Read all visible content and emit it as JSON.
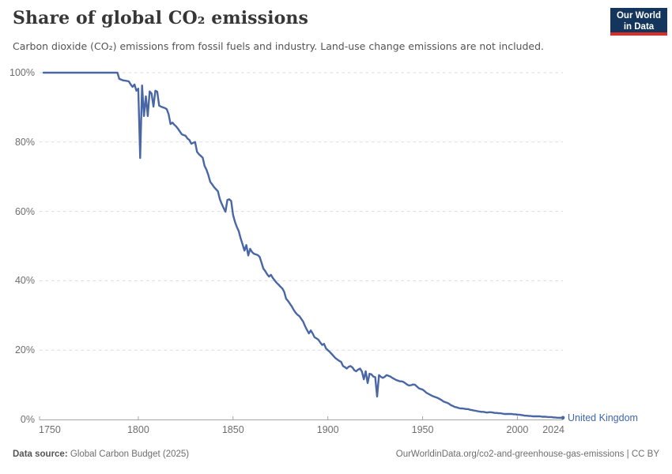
{
  "header": {
    "title": "Share of global CO₂ emissions",
    "subtitle": "Carbon dioxide (CO₂) emissions from fossil fuels and industry. Land-use change emissions are not included.",
    "logo": {
      "line1": "Our World",
      "line2": "in Data"
    }
  },
  "footer": {
    "source_label": "Data source:",
    "source_text": "Global Carbon Budget (2025)",
    "right_text": "OurWorldinData.org/co2-and-greenhouse-gas-emissions | CC BY"
  },
  "colors": {
    "line": "#4867a4",
    "entity_label": "#3f65ae",
    "logo_bg": "#14355c",
    "logo_accent": "#dc2e27",
    "grid": "#dadada",
    "axis": "#a5a5a5",
    "tick_label": "#6e6e6e",
    "title": "#373737",
    "subtitle": "#545454",
    "footer": "#6e6e6e"
  },
  "chart_data": {
    "type": "line",
    "title": "Share of global CO₂ emissions",
    "xlabel": "",
    "ylabel": "",
    "xlim": [
      1750,
      2024
    ],
    "ylim": [
      0,
      100
    ],
    "grid": "horizontal-dashed",
    "legend_position": "end-of-line",
    "x_ticks": [
      {
        "label": "1750",
        "value": 1750
      },
      {
        "label": "1800",
        "value": 1800
      },
      {
        "label": "1850",
        "value": 1850
      },
      {
        "label": "1900",
        "value": 1900
      },
      {
        "label": "1950",
        "value": 1950
      },
      {
        "label": "2000",
        "value": 2000
      },
      {
        "label": "2024",
        "value": 2024
      }
    ],
    "y_ticks": [
      {
        "label": "0%",
        "value": 0
      },
      {
        "label": "20%",
        "value": 20
      },
      {
        "label": "40%",
        "value": 40
      },
      {
        "label": "60%",
        "value": 60
      },
      {
        "label": "80%",
        "value": 80
      },
      {
        "label": "100%",
        "value": 100
      }
    ],
    "series": [
      {
        "name": "United Kingdom",
        "color": "#4867a4",
        "unit": "%",
        "start_year": 1750,
        "end_year": 2024,
        "values": [
          100,
          100,
          100,
          100,
          100,
          100,
          100,
          100,
          100,
          100,
          100,
          100,
          100,
          100,
          100,
          100,
          100,
          100,
          100,
          100,
          100,
          100,
          100,
          100,
          100,
          100,
          100,
          100,
          100,
          100,
          100,
          100,
          100,
          100,
          100,
          100,
          100,
          100,
          100,
          100,
          98.2,
          98.0,
          97.8,
          97.7,
          97.6,
          97.5,
          96.6,
          95.9,
          96.6,
          94.8,
          95.4,
          75.4,
          96.3,
          87.5,
          93.2,
          87.5,
          94.6,
          94.0,
          90.2,
          94.8,
          94.5,
          90.5,
          90.2,
          90.0,
          89.8,
          89.5,
          88.0,
          85.2,
          85.6,
          85.0,
          84.5,
          83.8,
          83.0,
          82.2,
          82.0,
          81.8,
          81.0,
          80.6,
          79.5,
          79.8,
          80.0,
          77.2,
          76.5,
          76.0,
          75.5,
          73.1,
          72.0,
          70.4,
          68.5,
          67.8,
          67.0,
          66.4,
          65.8,
          63.6,
          62.2,
          61.0,
          59.9,
          63.3,
          63.5,
          63.0,
          59.0,
          57.0,
          55.5,
          54.3,
          52.2,
          50.5,
          48.7,
          50.3,
          47.3,
          49.2,
          48.3,
          47.8,
          47.6,
          47.4,
          46.9,
          45.3,
          43.5,
          42.8,
          41.9,
          41.2,
          41.7,
          40.8,
          40.1,
          39.4,
          38.9,
          38.3,
          37.8,
          36.8,
          34.8,
          34.2,
          33.4,
          32.6,
          31.6,
          30.8,
          30.2,
          29.8,
          29.0,
          28.2,
          26.9,
          25.8,
          24.8,
          25.7,
          24.8,
          23.7,
          23.4,
          23.0,
          22.2,
          21.5,
          21.8,
          20.5,
          20.0,
          19.5,
          18.9,
          18.3,
          17.7,
          17.3,
          16.9,
          16.6,
          15.4,
          15.1,
          14.7,
          15.2,
          15.4,
          15.0,
          14.2,
          13.9,
          14.4,
          14.7,
          13.8,
          11.6,
          13.9,
          10.5,
          13.2,
          13.0,
          12.4,
          12.2,
          6.6,
          12.8,
          12.3,
          12.0,
          12.3,
          12.8,
          12.6,
          12.4,
          12.0,
          11.7,
          11.4,
          11.2,
          11.0,
          11.0,
          10.8,
          10.4,
          10.0,
          9.8,
          9.9,
          10.1,
          10.0,
          9.5,
          9.0,
          8.8,
          8.6,
          8.2,
          7.7,
          7.4,
          7.1,
          6.8,
          6.6,
          6.4,
          6.2,
          5.9,
          5.6,
          5.2,
          5.0,
          4.8,
          4.5,
          4.1,
          3.9,
          3.6,
          3.5,
          3.3,
          3.2,
          3.2,
          3.1,
          3.0,
          3.0,
          2.8,
          2.7,
          2.6,
          2.5,
          2.4,
          2.3,
          2.2,
          2.2,
          2.1,
          2.0,
          2.1,
          2.1,
          2.0,
          1.9,
          1.9,
          1.8,
          1.8,
          1.7,
          1.6,
          1.6,
          1.6,
          1.6,
          1.6,
          1.5,
          1.5,
          1.4,
          1.4,
          1.3,
          1.2,
          1.1,
          1.1,
          1.0,
          1.0,
          0.9,
          0.9,
          0.9,
          0.9,
          0.9,
          0.8,
          0.8,
          0.8,
          0.7,
          0.7,
          0.7,
          0.6,
          0.6,
          0.5,
          0.5,
          0.5,
          0.5
        ]
      }
    ]
  }
}
